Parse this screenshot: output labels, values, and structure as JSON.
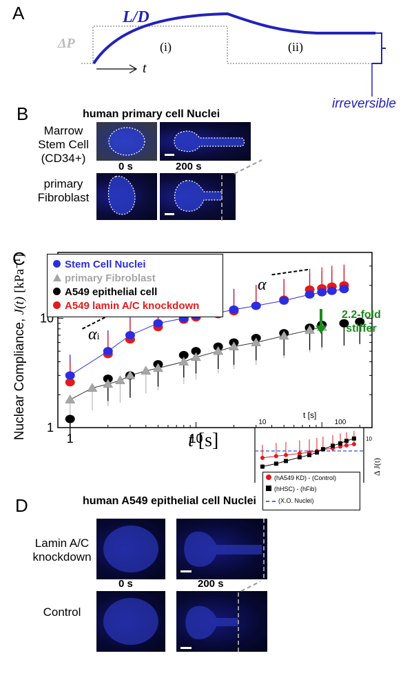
{
  "panels": {
    "a": {
      "label": "A",
      "ld": "L/D",
      "dp": "ΔP",
      "t": "t",
      "i": "(i)",
      "ii": "(ii)",
      "irreversible": "irreversible"
    },
    "b": {
      "label": "B",
      "title": "human primary cell Nuclei",
      "row1": [
        "Marrow",
        "Stem Cell",
        "(CD34+)"
      ],
      "row2": [
        "primary",
        "Fibroblast"
      ],
      "t0": "0 s",
      "t200": "200 s"
    },
    "c": {
      "label": "C",
      "ylabel_main": "Nuclear Compliance,",
      "ylabel_j": "J(t)",
      "ylabel_units": "[kPa⁻¹]",
      "xlabel_t": "t",
      "xlabel_unit": "[s]",
      "alpha_i": "α",
      "alpha_i_sub": "i",
      "alpha": "α",
      "fold_line1": "2.2-fold",
      "fold_line2": "stiffer",
      "legend": [
        {
          "label": "Stem Cell Nuclei",
          "color": "#2c2ce0",
          "marker": "circle"
        },
        {
          "label": "primary Fibroblast",
          "color": "#a6a6a6",
          "marker": "triangle"
        },
        {
          "label": "A549 epithelial cell",
          "color": "#000000",
          "marker": "circle"
        },
        {
          "label": "A549 lamin A/C knockdown",
          "color": "#e31a1a",
          "marker": "circle"
        }
      ],
      "inset": {
        "xlabel": "t [s]",
        "ylabel": "Δ J(t)",
        "legend": [
          {
            "label": "(hA549 KD) - (Control)",
            "color": "#e31a1a",
            "marker": "circle"
          },
          {
            "label": "(hHSC)        - (hFib)",
            "color": "#000000",
            "marker": "square"
          },
          {
            "label": "(X.O. Nuclei)",
            "color": "#4a6cf0",
            "marker": "dash"
          }
        ]
      }
    },
    "d": {
      "label": "D",
      "title": "human A549 epithelial cell Nuclei",
      "row1": [
        "Lamin A/C",
        "knockdown"
      ],
      "row2": [
        "Control"
      ],
      "t0": "0 s",
      "t200": "200 s"
    }
  },
  "chart_data": {
    "type": "scatter",
    "xscale": "log",
    "yscale": "log",
    "xlim": [
      0.8,
      250
    ],
    "ylim": [
      1,
      40
    ],
    "xticks": [
      1,
      10
    ],
    "yticks": [
      1,
      10
    ],
    "series": [
      {
        "name": "Stem Cell Nuclei",
        "x": [
          1,
          2,
          3,
          5,
          8,
          10,
          15,
          20,
          30,
          50,
          80,
          100,
          120,
          150
        ],
        "y": [
          3.0,
          5.0,
          7.0,
          9.0,
          10.0,
          10.6,
          11.2,
          12.0,
          13.0,
          14.5,
          16.5,
          17.3,
          17.8,
          18.5
        ]
      },
      {
        "name": "primary Fibroblast",
        "x": [
          1,
          1.5,
          2,
          2.5,
          3,
          4,
          5,
          8,
          10,
          15,
          20,
          30,
          50,
          80,
          100
        ],
        "y": [
          1.8,
          2.3,
          2.5,
          2.7,
          3.0,
          3.3,
          3.5,
          4.0,
          4.4,
          5.0,
          5.5,
          6.0,
          6.9,
          7.8,
          8.3
        ]
      },
      {
        "name": "A549 epithelial cell",
        "x": [
          1,
          2,
          3,
          5,
          8,
          10,
          15,
          20,
          30,
          50,
          80,
          100,
          150,
          200
        ],
        "y": [
          1.2,
          2.8,
          3.0,
          3.8,
          4.6,
          5.0,
          5.5,
          6.0,
          6.6,
          7.3,
          8.2,
          8.7,
          9.0,
          9.3
        ]
      },
      {
        "name": "A549 lamin A/C knockdown",
        "x": [
          1,
          2,
          3,
          5,
          8,
          10,
          15,
          20,
          30,
          50,
          80,
          100,
          120,
          150
        ],
        "y": [
          2.6,
          4.7,
          6.4,
          8.3,
          9.7,
          10.2,
          10.9,
          11.6,
          13.0,
          14.8,
          18.3,
          18.8,
          19.5,
          20.0
        ]
      }
    ]
  }
}
